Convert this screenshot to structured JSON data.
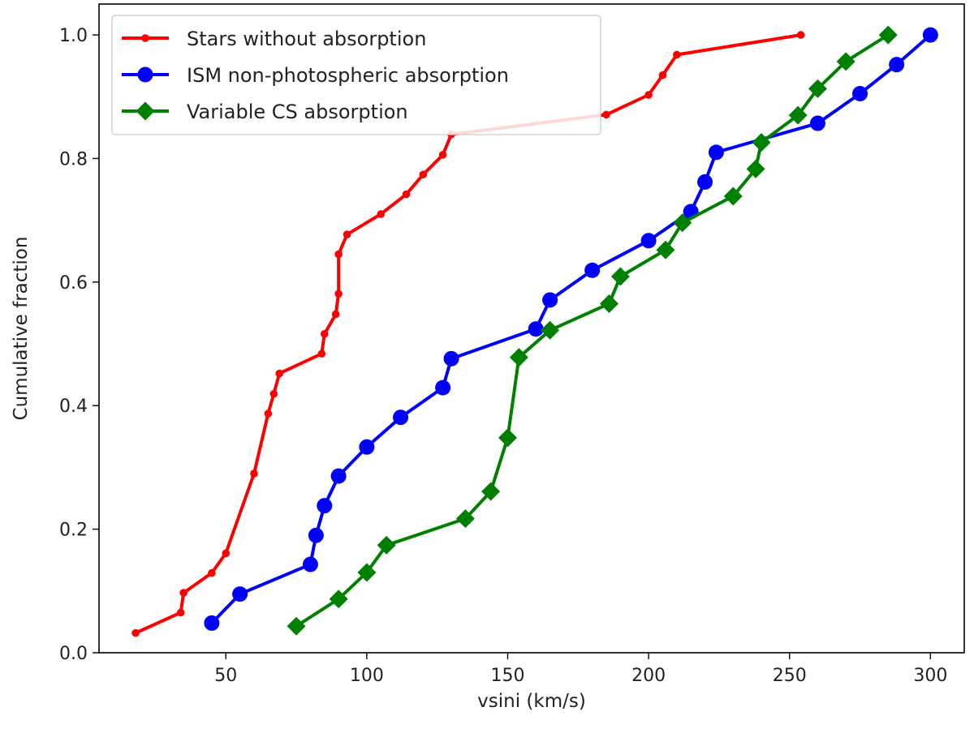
{
  "chart_data": {
    "type": "line",
    "title": "",
    "xlabel": "vsini (km/s)",
    "ylabel": "Cumulative fraction",
    "xlim": [
      5,
      312
    ],
    "ylim": [
      0.0,
      1.05
    ],
    "xticks": [
      50,
      100,
      150,
      200,
      250,
      300
    ],
    "yticks": [
      0.0,
      0.2,
      0.4,
      0.6,
      0.8,
      1.0
    ],
    "xtick_labels": [
      "50",
      "100",
      "150",
      "200",
      "250",
      "300"
    ],
    "ytick_labels": [
      "0.0",
      "0.2",
      "0.4",
      "0.6",
      "0.8",
      "1.0"
    ],
    "grid": false,
    "legend_position": "top-left",
    "series": [
      {
        "name": "Stars without absorption",
        "color": "#ff0000",
        "marker": "small-circle",
        "x": [
          18,
          34,
          35,
          45,
          50,
          60,
          65,
          67,
          69,
          84,
          85,
          89,
          90,
          90,
          93,
          105,
          114,
          120,
          127,
          130,
          185,
          200,
          205,
          210,
          254
        ],
        "y": [
          0.032,
          0.065,
          0.097,
          0.129,
          0.161,
          0.29,
          0.387,
          0.419,
          0.452,
          0.484,
          0.516,
          0.548,
          0.581,
          0.645,
          0.677,
          0.71,
          0.742,
          0.774,
          0.806,
          0.839,
          0.871,
          0.903,
          0.935,
          0.968,
          1.0
        ]
      },
      {
        "name": "ISM non-photospheric absorption",
        "color": "#0000ff",
        "marker": "circle",
        "x": [
          45,
          55,
          80,
          82,
          85,
          90,
          100,
          112,
          127,
          130,
          160,
          165,
          180,
          200,
          215,
          220,
          224,
          260,
          275,
          288,
          300
        ],
        "y": [
          0.048,
          0.095,
          0.143,
          0.19,
          0.238,
          0.286,
          0.333,
          0.381,
          0.429,
          0.476,
          0.524,
          0.571,
          0.619,
          0.667,
          0.714,
          0.762,
          0.81,
          0.857,
          0.905,
          0.952,
          1.0
        ]
      },
      {
        "name": "Variable CS absorption",
        "color": "#008000",
        "marker": "diamond",
        "x": [
          75,
          90,
          100,
          107,
          135,
          144,
          150,
          154,
          165,
          186,
          190,
          206,
          212,
          230,
          238,
          240,
          253,
          260,
          270,
          285
        ],
        "y": [
          0.043,
          0.087,
          0.13,
          0.174,
          0.217,
          0.261,
          0.348,
          0.478,
          0.522,
          0.565,
          0.609,
          0.652,
          0.696,
          0.739,
          0.783,
          0.826,
          0.87,
          0.913,
          0.957,
          1.0
        ]
      }
    ]
  }
}
